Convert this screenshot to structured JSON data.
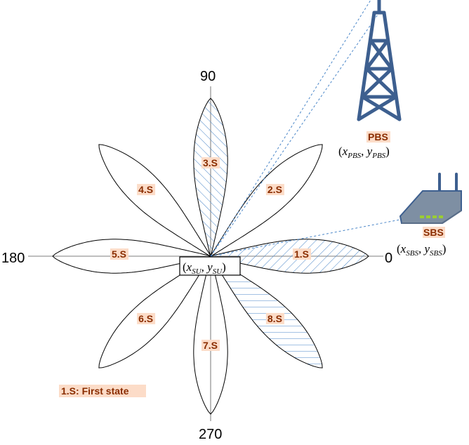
{
  "axes": {
    "angle_0": "0",
    "angle_90": "90",
    "angle_180": "180",
    "angle_270": "270"
  },
  "states": [
    {
      "label": "1.S",
      "angle": 0,
      "hatched": true
    },
    {
      "label": "2.S",
      "angle": 45,
      "hatched": false
    },
    {
      "label": "3.S",
      "angle": 90,
      "hatched": true
    },
    {
      "label": "4.S",
      "angle": 135,
      "hatched": false
    },
    {
      "label": "5.S",
      "angle": 180,
      "hatched": false
    },
    {
      "label": "6.S",
      "angle": 225,
      "hatched": false
    },
    {
      "label": "7.S",
      "angle": 270,
      "hatched": false
    },
    {
      "label": "8.S",
      "angle": 315,
      "hatched": true
    }
  ],
  "legend_note": "1.S: First state",
  "su": {
    "x": "x",
    "x_sub": "SU",
    "y": "y",
    "y_sub": "SU"
  },
  "pbs": {
    "name": "PBS",
    "x": "x",
    "x_sub": "PBS",
    "y": "y",
    "y_sub": "PBS"
  },
  "sbs": {
    "name": "SBS",
    "x": "x",
    "x_sub": "SBS",
    "y": "y",
    "y_sub": "SBS"
  },
  "colors": {
    "hatch": "#4a86c8",
    "tower": "#3d5f8f",
    "router_body": "#7e8fa3",
    "router_leds": "#9acd32",
    "label_bg": "#fcdcc8",
    "label_text": "#8a2d00",
    "link_line": "#4a86c8"
  }
}
